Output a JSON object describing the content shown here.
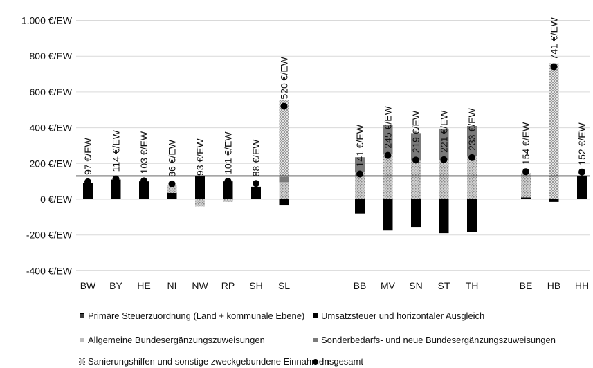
{
  "chart_data": {
    "type": "bar",
    "stacked": true,
    "grid": true,
    "ylim": [
      -400,
      1000
    ],
    "yticks": [
      -400,
      -200,
      0,
      200,
      400,
      600,
      800,
      1000
    ],
    "ytick_labels": [
      "-400 €/EW",
      "-200 €/EW",
      "0 €/EW",
      "200 €/EW",
      "400 €/EW",
      "600 €/EW",
      "800 €/EW",
      "1.000 €/EW"
    ],
    "reference_line": 130,
    "groups": [
      [
        "BW",
        "BY",
        "HE",
        "NI",
        "NW",
        "RP",
        "SH",
        "SL"
      ],
      [
        "BB",
        "MV",
        "SN",
        "ST",
        "TH"
      ],
      [
        "BE",
        "HB",
        "HH"
      ]
    ],
    "categories": [
      "BW",
      "BY",
      "HE",
      "NI",
      "NW",
      "RP",
      "SH",
      "SL",
      "BB",
      "MV",
      "SN",
      "ST",
      "TH",
      "BE",
      "HB",
      "HH"
    ],
    "series": [
      {
        "name": "Primäre Steuerzuordnung (Land + kommunale Ebene)",
        "color": "#3a3a3a",
        "values": [
          0,
          0,
          0,
          0,
          0,
          0,
          0,
          0,
          0,
          0,
          0,
          0,
          0,
          0,
          0,
          0
        ]
      },
      {
        "name": "Umsatzsteuer und horizontaler Ausgleich",
        "color": "#000000",
        "values": [
          90,
          110,
          100,
          35,
          130,
          100,
          70,
          -35,
          -80,
          -175,
          -155,
          -190,
          -185,
          10,
          -15,
          130
        ]
      },
      {
        "name": "Allgemeine Bundesergänzungszuweisungen",
        "color": "#bdbdbd",
        "values": [
          0,
          0,
          0,
          45,
          -40,
          -15,
          0,
          95,
          150,
          255,
          215,
          220,
          240,
          135,
          0,
          0
        ]
      },
      {
        "name": "Sonderbedarfs- und neue Bundesergänzungszuweisungen",
        "color": "#7a7a7a",
        "values": [
          0,
          0,
          0,
          0,
          0,
          0,
          0,
          30,
          85,
          160,
          155,
          175,
          170,
          0,
          0,
          0
        ]
      },
      {
        "name": "Sanierungshilfen und sonstige zweckgebundene Einnahmen",
        "color": "#d0d0d0",
        "values": [
          0,
          0,
          0,
          0,
          0,
          0,
          0,
          430,
          0,
          0,
          0,
          0,
          0,
          0,
          760,
          0
        ]
      }
    ],
    "total": {
      "name": "Insgesamt",
      "values": [
        97,
        114,
        103,
        86,
        93,
        101,
        88,
        520,
        141,
        245,
        219,
        221,
        233,
        154,
        741,
        152
      ],
      "labels": [
        "97 €/EW",
        "114 €/EW",
        "103 €/EW",
        "86 €/EW",
        "93 €/EW",
        "101 €/EW",
        "88 €/EW",
        "520 €/EW",
        "141 €/EW",
        "245 €/EW",
        "219 €/EW",
        "221 €/EW",
        "233 €/EW",
        "154 €/EW",
        "741 €/EW",
        "152 €/EW"
      ]
    }
  },
  "legend": {
    "item1": "Primäre Steuerzuordnung (Land + kommunale Ebene)",
    "item2": "Umsatzsteuer und horizontaler Ausgleich",
    "item3": "Allgemeine Bundesergänzungszuweisungen",
    "item4": "Sonderbedarfs- und neue Bundesergänzungszuweisungen",
    "item5": "Sanierungshilfen und sonstige zweckgebundene Einnahmen",
    "item6": "Insgesamt"
  }
}
